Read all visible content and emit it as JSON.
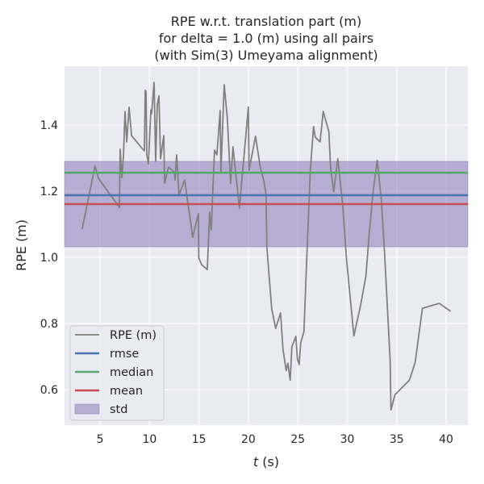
{
  "chart_data": {
    "type": "line",
    "title": [
      "RPE w.r.t. translation part (m)",
      "for delta = 1.0 (m) using all pairs",
      "(with Sim(3) Umeyama alignment)"
    ],
    "xlabel_var": "t",
    "xlabel_unit": " (s)",
    "ylabel": "RPE (m)",
    "xlim": [
      1.4,
      42.2
    ],
    "ylim": [
      0.493,
      1.578
    ],
    "xticks": [
      5,
      10,
      15,
      20,
      25,
      30,
      35,
      40
    ],
    "yticks": [
      0.6,
      0.8,
      1.0,
      1.2,
      1.4
    ],
    "grid": true,
    "legend_position": "lower-left",
    "series": [
      {
        "name": "RPE (m)",
        "color": "#808080",
        "x": [
          3.18,
          4.48,
          4.83,
          6.95,
          7.03,
          7.2,
          7.36,
          7.52,
          7.69,
          7.93,
          8.18,
          9.4,
          9.48,
          9.56,
          9.64,
          9.72,
          9.89,
          10.13,
          10.21,
          10.46,
          10.62,
          10.78,
          10.95,
          11.11,
          11.44,
          11.52,
          11.92,
          12.49,
          12.58,
          12.74,
          12.98,
          13.55,
          14.37,
          14.94,
          14.98,
          15.27,
          15.84,
          16.08,
          16.24,
          16.57,
          16.81,
          17.14,
          17.22,
          17.55,
          17.87,
          18.2,
          18.44,
          19.09,
          19.99,
          20.07,
          20.72,
          21.21,
          21.54,
          21.78,
          21.87,
          22.36,
          22.76,
          23.25,
          23.5,
          23.82,
          23.99,
          24.23,
          24.39,
          24.8,
          24.96,
          25.13,
          25.29,
          25.62,
          25.86,
          26.27,
          26.59,
          26.76,
          27.25,
          27.57,
          28.14,
          28.31,
          28.63,
          29.04,
          29.53,
          29.94,
          30.67,
          31.32,
          31.89,
          32.22,
          32.62,
          33.03,
          33.44,
          33.77,
          34.34,
          34.42,
          34.83,
          36.29,
          36.87,
          37.6,
          39.31,
          40.45
        ],
        "y": [
          1.085,
          1.276,
          1.239,
          1.151,
          1.327,
          1.241,
          1.307,
          1.441,
          1.349,
          1.454,
          1.368,
          1.324,
          1.322,
          1.505,
          1.502,
          1.31,
          1.283,
          1.446,
          1.434,
          1.529,
          1.29,
          1.461,
          1.488,
          1.298,
          1.368,
          1.224,
          1.273,
          1.258,
          1.234,
          1.31,
          1.188,
          1.234,
          1.061,
          1.132,
          0.998,
          0.978,
          0.963,
          1.137,
          1.083,
          1.324,
          1.31,
          1.444,
          1.258,
          1.522,
          1.42,
          1.224,
          1.334,
          1.149,
          1.454,
          1.263,
          1.366,
          1.271,
          1.234,
          1.193,
          1.029,
          0.844,
          0.785,
          0.832,
          0.722,
          0.658,
          0.68,
          0.629,
          0.729,
          0.761,
          0.693,
          0.676,
          0.741,
          0.776,
          0.966,
          1.266,
          1.395,
          1.363,
          1.349,
          1.441,
          1.38,
          1.273,
          1.198,
          1.298,
          1.161,
          0.99,
          0.763,
          0.851,
          0.944,
          1.071,
          1.2,
          1.293,
          1.176,
          1.015,
          0.688,
          0.539,
          0.585,
          0.629,
          0.683,
          0.846,
          0.861,
          0.837
        ]
      },
      {
        "name": "rmse",
        "color": "#4c72b0",
        "value": 1.188
      },
      {
        "name": "median",
        "color": "#55a868",
        "value": 1.256
      },
      {
        "name": "mean",
        "color": "#c44e52",
        "value": 1.161
      },
      {
        "name": "std",
        "color": "#8172b2",
        "range": [
          1.032,
          1.29
        ]
      }
    ]
  }
}
